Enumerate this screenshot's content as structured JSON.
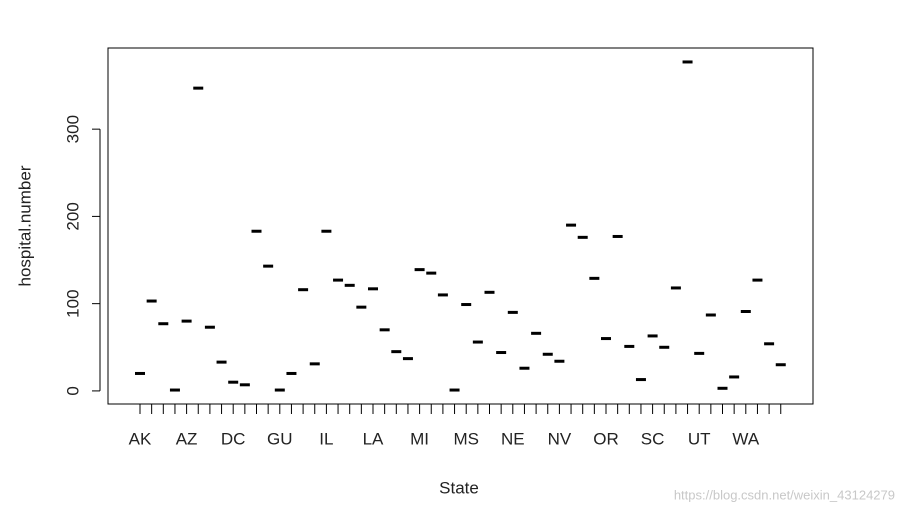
{
  "chart_data": {
    "type": "strip",
    "x_label": "State",
    "y_label": "hospital.number",
    "categories": [
      "AK",
      null,
      null,
      null,
      "AZ",
      null,
      null,
      null,
      "DC",
      null,
      null,
      null,
      "GU",
      null,
      null,
      null,
      "IL",
      null,
      null,
      null,
      "LA",
      null,
      null,
      null,
      "MI",
      null,
      null,
      null,
      "MS",
      null,
      null,
      null,
      "NE",
      null,
      null,
      null,
      "NV",
      null,
      null,
      null,
      "OR",
      null,
      null,
      null,
      "SC",
      null,
      null,
      null,
      "UT",
      null,
      null,
      null,
      "WA",
      null,
      null,
      null
    ],
    "values": [
      20,
      103,
      77,
      1,
      80,
      347,
      73,
      33,
      10,
      7,
      183,
      143,
      1,
      20,
      116,
      31,
      183,
      127,
      121,
      96,
      117,
      70,
      45,
      37,
      139,
      135,
      110,
      1,
      99,
      56,
      113,
      44,
      90,
      26,
      66,
      42,
      34,
      190,
      176,
      129,
      60,
      177,
      51,
      13,
      63,
      50,
      118,
      377,
      43,
      87,
      3,
      16,
      91,
      127,
      54,
      30
    ],
    "color": "#000000",
    "ylim": [
      -15,
      393
    ],
    "yticks": [
      0,
      100,
      200,
      300
    ],
    "watermark": "https://blog.csdn.net/weixin_43124279"
  }
}
